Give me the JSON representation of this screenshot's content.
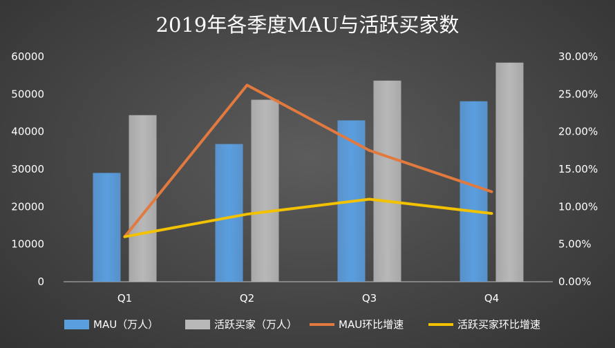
{
  "chart_data": {
    "type": "bar",
    "title": "2019年各季度MAU与活跃买家数",
    "categories": [
      "Q1",
      "Q2",
      "Q3",
      "Q4"
    ],
    "series": [
      {
        "name": "MAU（万人）",
        "type": "bar",
        "axis": "left",
        "color": "#5a9ee0",
        "values": [
          29000,
          36700,
          43000,
          48100
        ]
      },
      {
        "name": "活跃买家（万人）",
        "type": "bar",
        "axis": "left",
        "color": "#b8b8b8",
        "values": [
          44400,
          48500,
          53600,
          58400
        ]
      },
      {
        "name": "MAU环比增速",
        "type": "line",
        "axis": "right",
        "color": "#e27a3f",
        "values": [
          0.06,
          0.262,
          0.175,
          0.12
        ]
      },
      {
        "name": "活跃买家环比增速",
        "type": "line",
        "axis": "right",
        "color": "#f2c200",
        "values": [
          0.06,
          0.09,
          0.11,
          0.091
        ]
      }
    ],
    "y_left": {
      "min": 0,
      "max": 60000,
      "ticks": [
        "0",
        "10000",
        "20000",
        "30000",
        "40000",
        "50000",
        "60000"
      ]
    },
    "y_right": {
      "min": 0,
      "max": 0.3,
      "ticks": [
        "0.00%",
        "5.00%",
        "10.00%",
        "15.00%",
        "20.00%",
        "25.00%",
        "30.00%"
      ]
    },
    "legend_position": "bottom",
    "grid": false
  }
}
